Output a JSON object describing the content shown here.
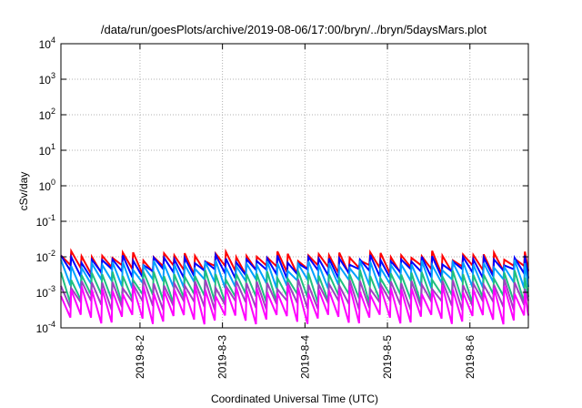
{
  "chart_data": {
    "type": "line",
    "title": "/data/run/goesPlots/archive/2019-08-06/17:00/bryn/../bryn/5daysMars.plot",
    "xlabel": "Coordinated Universal Time (UTC)",
    "ylabel": "cSv/day",
    "yscale": "log",
    "ylim": [
      0.0001,
      10000
    ],
    "y_ticks": [
      {
        "value": 0.0001,
        "base": "10",
        "exp": "-4"
      },
      {
        "value": 0.001,
        "base": "10",
        "exp": "-3"
      },
      {
        "value": 0.01,
        "base": "10",
        "exp": "-2"
      },
      {
        "value": 0.1,
        "base": "10",
        "exp": "-1"
      },
      {
        "value": 1,
        "base": "10",
        "exp": "0"
      },
      {
        "value": 10,
        "base": "10",
        "exp": "1"
      },
      {
        "value": 100,
        "base": "10",
        "exp": "2"
      },
      {
        "value": 1000,
        "base": "10",
        "exp": "3"
      },
      {
        "value": 10000,
        "base": "10",
        "exp": "4"
      }
    ],
    "xlim": [
      "2019-08-01T01:00",
      "2019-08-06T17:00"
    ],
    "x_ticks": [
      "2019-8-2",
      "2019-8-3",
      "2019-8-4",
      "2019-8-5",
      "2019-8-6"
    ],
    "grid": true,
    "legend": "none",
    "cycle_hours": 3,
    "series": [
      {
        "color": "#ff0000",
        "peak": 0.011,
        "trough": 0.0045
      },
      {
        "color": "#0000ff",
        "peak": 0.0085,
        "trough": 0.0035
      },
      {
        "color": "#00a0ff",
        "peak": 0.0062,
        "trough": 0.0018
      },
      {
        "color": "#20c080",
        "peak": 0.0032,
        "trough": 0.0007
      },
      {
        "color": "#a040c0",
        "peak": 0.0018,
        "trough": 0.00045
      },
      {
        "color": "#ff00ff",
        "peak": 0.0012,
        "trough": 0.00018
      }
    ]
  }
}
